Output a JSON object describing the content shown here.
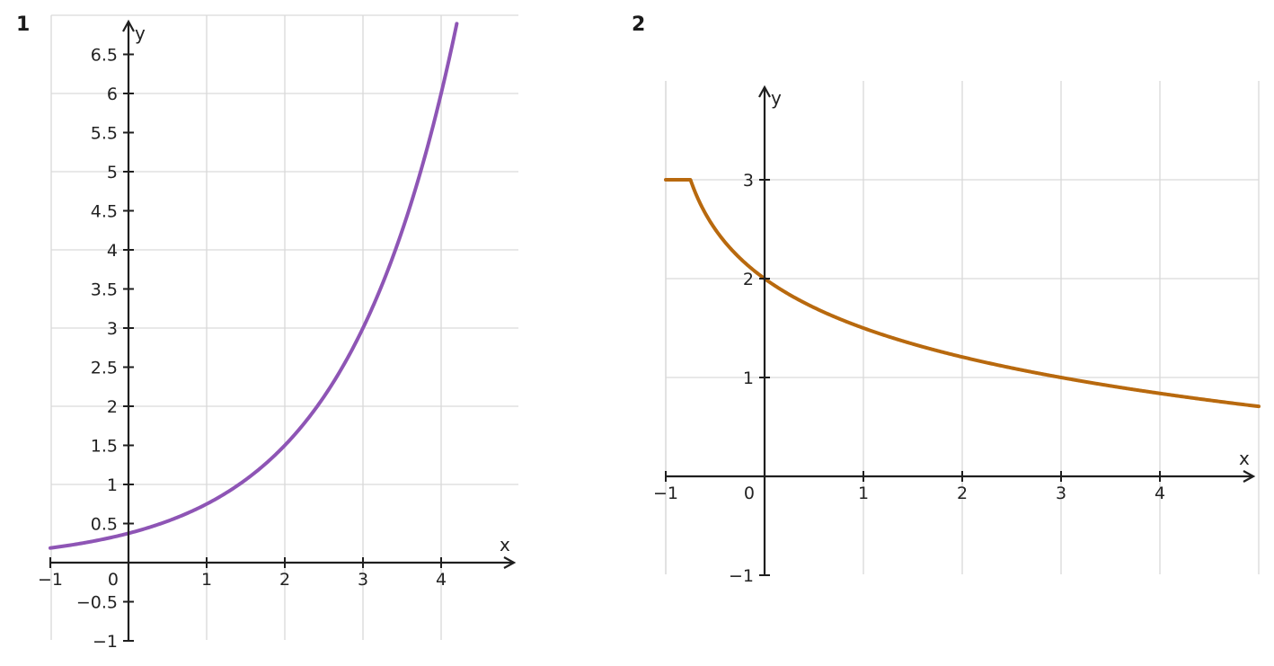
{
  "chart_data": [
    {
      "panel_number": "1",
      "type": "line",
      "xlabel": "x",
      "ylabel": "y",
      "xlim": [
        -1,
        5
      ],
      "ylim": [
        -1,
        7
      ],
      "xticks": [
        -1,
        1,
        2,
        3,
        4
      ],
      "xtick_labels": [
        "−1",
        "1",
        "2",
        "3",
        "4"
      ],
      "yticks": [
        -1,
        -0.5,
        0.5,
        1,
        1.5,
        2,
        2.5,
        3,
        3.5,
        4,
        4.5,
        5,
        5.5,
        6,
        6.5
      ],
      "ytick_labels": [
        "−1",
        "−0.5",
        "0.5",
        "1",
        "1.5",
        "2",
        "2.5",
        "3",
        "3.5",
        "4",
        "4.5",
        "5",
        "5.5",
        "6",
        "6.5"
      ],
      "origin_label": "0",
      "grid": true,
      "series": [
        {
          "color": "#8e55b5",
          "x": [
            -1,
            0,
            1,
            2,
            3,
            4,
            4.2
          ],
          "y": [
            0.1875,
            0.375,
            0.75,
            1.5,
            3,
            6,
            6.89
          ]
        }
      ]
    },
    {
      "panel_number": "2",
      "type": "line",
      "xlabel": "x",
      "ylabel": "y",
      "xlim": [
        -1,
        5
      ],
      "ylim": [
        -1,
        3
      ],
      "xticks": [
        -1,
        1,
        2,
        3,
        4
      ],
      "xtick_labels": [
        "−1",
        "1",
        "2",
        "3",
        "4"
      ],
      "yticks": [
        -1,
        1,
        2,
        3
      ],
      "ytick_labels": [
        "−1",
        "1",
        "2",
        "3"
      ],
      "origin_label": "0",
      "grid": true,
      "series": [
        {
          "color": "#b8690e",
          "x": [
            -1,
            -0.75,
            -0.5,
            0,
            0.5,
            1,
            1.5,
            2,
            2.5,
            3,
            3.5,
            4,
            4.5,
            5
          ],
          "y": [
            3,
            2.59,
            2.42,
            2.0,
            1.79,
            1.59,
            1.42,
            1.27,
            1.13,
            1.0,
            0.88,
            0.76,
            0.65,
            0.55
          ]
        }
      ]
    }
  ]
}
